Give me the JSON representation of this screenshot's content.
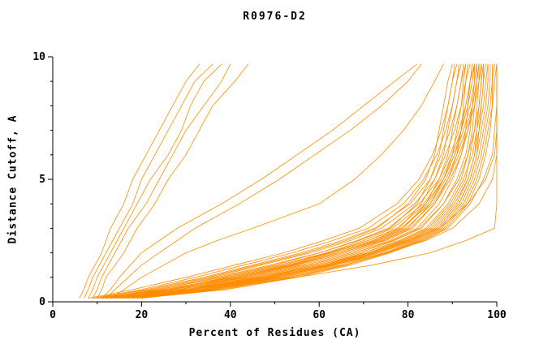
{
  "title": "R0976-D2",
  "chart_data": {
    "type": "line",
    "title": "R0976-D2",
    "xlabel": "Percent of Residues (CA)",
    "ylabel": "Distance Cutoff, A",
    "xlim": [
      0,
      100
    ],
    "ylim": [
      0,
      10
    ],
    "x_major_ticks": [
      0,
      20,
      40,
      60,
      80,
      100
    ],
    "x_minor_ticks": [
      10,
      30,
      50,
      70,
      90
    ],
    "y_major_ticks": [
      0,
      5,
      10
    ],
    "y_minor_ticks": [
      1,
      2,
      3,
      4,
      6,
      7,
      8,
      9
    ],
    "line_color": "#ff8c00",
    "axis_color": "#000000",
    "legend": "none",
    "grid": false,
    "y_levels": [
      0.15,
      0.5,
      1,
      1.5,
      2,
      2.5,
      3,
      4,
      5,
      6,
      7,
      8,
      9,
      9.7
    ],
    "series": [
      [
        6,
        7,
        8,
        9.5,
        11,
        12,
        13,
        16,
        18,
        21,
        24,
        27,
        30,
        33
      ],
      [
        7,
        8,
        9,
        10.5,
        12,
        13.5,
        15,
        18,
        20,
        23,
        26,
        29,
        32,
        36
      ],
      [
        8,
        9,
        10,
        11.5,
        13,
        14.5,
        16,
        19,
        22,
        26,
        29,
        31,
        34,
        38
      ],
      [
        9,
        10,
        11,
        12.5,
        14,
        15.5,
        17,
        21,
        24,
        27,
        30,
        34,
        38,
        40
      ],
      [
        10,
        11,
        12,
        14,
        16,
        17.5,
        19,
        23,
        26,
        30,
        33,
        36,
        41,
        44
      ],
      [
        11,
        13,
        15,
        17.5,
        20,
        24,
        28,
        38,
        47,
        55,
        63,
        70,
        77,
        82
      ],
      [
        12,
        14,
        17,
        20,
        24,
        28,
        32,
        42,
        51,
        59,
        67,
        74,
        80,
        83
      ],
      [
        13,
        16,
        20,
        25,
        30,
        37,
        45,
        60,
        68,
        74,
        79,
        83,
        86,
        88
      ],
      [
        9,
        22,
        35,
        46,
        57,
        66,
        73,
        80,
        84,
        86,
        87,
        88,
        89,
        90
      ],
      [
        10,
        24,
        38,
        50,
        60,
        69,
        76,
        82,
        85,
        87,
        88,
        89,
        90,
        91
      ],
      [
        11,
        25,
        40,
        52,
        62,
        71,
        78,
        83,
        86,
        88,
        89,
        90,
        91,
        92
      ],
      [
        12,
        27,
        42,
        54,
        64,
        73,
        79,
        84,
        87,
        89,
        90,
        91,
        92,
        92.5
      ],
      [
        13,
        28,
        43,
        55,
        65,
        74,
        80,
        85,
        88,
        90,
        91,
        92,
        92.5,
        93
      ],
      [
        14,
        30,
        45,
        57,
        67,
        75,
        81,
        86,
        89,
        91,
        92,
        92.5,
        93,
        93.5
      ],
      [
        15,
        31,
        46,
        58,
        68,
        76,
        82,
        87,
        90,
        92,
        93,
        93.5,
        94,
        94.5
      ],
      [
        16,
        32,
        47,
        59,
        69,
        77,
        83,
        88,
        91,
        93,
        94,
        94.5,
        95,
        95
      ],
      [
        17,
        33,
        48,
        60,
        70,
        78,
        84,
        89,
        92,
        93.5,
        94.5,
        95,
        95.5,
        95.5
      ],
      [
        18,
        34,
        49,
        61,
        71,
        79,
        85,
        90,
        93,
        94,
        95,
        95.5,
        96,
        96
      ],
      [
        19,
        35,
        50,
        62,
        72,
        80,
        86,
        91,
        93.5,
        95,
        95.5,
        96,
        96.5,
        96.5
      ],
      [
        20,
        36,
        51,
        63,
        73,
        81,
        86.5,
        91.5,
        94,
        95.5,
        96,
        96.5,
        97,
        97
      ],
      [
        10,
        26,
        41,
        53,
        63,
        72,
        78.5,
        84.5,
        88,
        90.5,
        92,
        93,
        94,
        95
      ],
      [
        11,
        28,
        44,
        56,
        66,
        74.5,
        80.5,
        86,
        89.5,
        92,
        93.5,
        94.5,
        95.5,
        96
      ],
      [
        12,
        30,
        46,
        58,
        68,
        76.5,
        82.5,
        88,
        91.5,
        93.5,
        95,
        96,
        96.5,
        97
      ],
      [
        13,
        32,
        48,
        60,
        70,
        78.5,
        84.5,
        89.5,
        92.5,
        94.5,
        95.5,
        96.5,
        97,
        97.5
      ],
      [
        14,
        33,
        49,
        61.5,
        71.5,
        79.5,
        85.5,
        90.5,
        93.5,
        95,
        96,
        97,
        97.5,
        98
      ],
      [
        15,
        34,
        50,
        62.5,
        72.5,
        80.5,
        86.5,
        91.5,
        94,
        95.5,
        96.5,
        97.5,
        98,
        98
      ],
      [
        16,
        35,
        51,
        63.5,
        73.5,
        81.5,
        87,
        92,
        94.5,
        96,
        97,
        98,
        98.5,
        98.5
      ],
      [
        17,
        36,
        52,
        64.5,
        74.5,
        82,
        87.5,
        92.5,
        95,
        96.5,
        97.5,
        98.5,
        99,
        99
      ],
      [
        18,
        37,
        53,
        65.5,
        75,
        82.5,
        88,
        93,
        95.5,
        97,
        98,
        99,
        99,
        99.5
      ],
      [
        19,
        38,
        54,
        66,
        75.5,
        83,
        88.5,
        93.5,
        96,
        97.5,
        98.5,
        99,
        99.5,
        100
      ],
      [
        20,
        39,
        55,
        67,
        76,
        83.5,
        89,
        94,
        97,
        99,
        99.5,
        100,
        100,
        100
      ],
      [
        9,
        20,
        32,
        43,
        54,
        63,
        71,
        79,
        83.5,
        86.5,
        88.5,
        90,
        91,
        91.5
      ],
      [
        10,
        21,
        34,
        45,
        56,
        65,
        72.5,
        80.5,
        85,
        87.5,
        89.5,
        91,
        92,
        93
      ],
      [
        11,
        23,
        36,
        47,
        58,
        67,
        74,
        81.5,
        86,
        88.5,
        90.5,
        92,
        93,
        94
      ],
      [
        12,
        24,
        37,
        49,
        60,
        68.5,
        75.5,
        82.5,
        87,
        89.5,
        91.5,
        93,
        94,
        94.5
      ],
      [
        13,
        26,
        39,
        51,
        61.5,
        70,
        76.5,
        83.5,
        87.5,
        90,
        92,
        93.5,
        94.5,
        95
      ],
      [
        14,
        27,
        40,
        52,
        62.5,
        71,
        77.5,
        84,
        88,
        90.5,
        92.5,
        94,
        95,
        95.5
      ],
      [
        15,
        29,
        42,
        53.5,
        64,
        72.5,
        78.5,
        85,
        88.5,
        91,
        93,
        94.5,
        95.5,
        96
      ],
      [
        16,
        30,
        43,
        54.5,
        65,
        73.5,
        79.5,
        85.5,
        89,
        91.5,
        93.5,
        95,
        96,
        96.5
      ],
      [
        8,
        18,
        30,
        41,
        52,
        61,
        69,
        77.5,
        82.5,
        85.5,
        87.5,
        89,
        90,
        90.5
      ],
      [
        14,
        31,
        47,
        60,
        71,
        80,
        87,
        93.5,
        97.5,
        99.5,
        100,
        100,
        100,
        100
      ],
      [
        12,
        30,
        48,
        63,
        75,
        84,
        90,
        96,
        99,
        100,
        100,
        100,
        100,
        100
      ],
      [
        15,
        35,
        55,
        72,
        85,
        93,
        99.5,
        100,
        100,
        100,
        100,
        100,
        100,
        100
      ]
    ]
  }
}
